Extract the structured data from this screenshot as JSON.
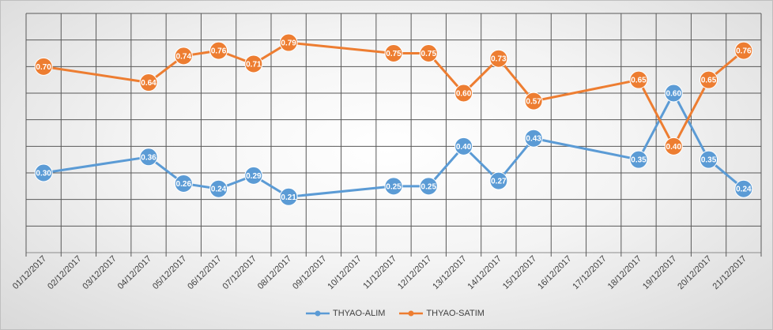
{
  "chart_data": {
    "type": "line",
    "title": "",
    "xlabel": "",
    "ylabel": "",
    "ylim": [
      0,
      0.9
    ],
    "grid": true,
    "legend_position": "bottom",
    "categories": [
      "01/12/2017",
      "02/12/2017",
      "03/12/2017",
      "04/12/2017",
      "05/12/2017",
      "06/12/2017",
      "07/12/2017",
      "08/12/2017",
      "09/12/2017",
      "10/12/2017",
      "11/12/2017",
      "12/12/2017",
      "13/12/2017",
      "14/12/2017",
      "15/12/2017",
      "16/12/2017",
      "17/12/2017",
      "18/12/2017",
      "19/12/2017",
      "20/12/2017",
      "21/12/2017"
    ],
    "series": [
      {
        "name": "THYAO-ALIM",
        "color": "#5b9bd5",
        "points": [
          {
            "x": 0.0,
            "y": 0.3,
            "label": "0.30"
          },
          {
            "x": 3.0,
            "y": 0.36,
            "label": "0.36"
          },
          {
            "x": 4.0,
            "y": 0.26,
            "label": "0.26"
          },
          {
            "x": 5.0,
            "y": 0.24,
            "label": "0.24"
          },
          {
            "x": 6.0,
            "y": 0.29,
            "label": "0.29"
          },
          {
            "x": 7.0,
            "y": 0.21,
            "label": "0.21"
          },
          {
            "x": 10.0,
            "y": 0.25,
            "label": "0.25"
          },
          {
            "x": 11.0,
            "y": 0.25,
            "label": "0.25"
          },
          {
            "x": 12.0,
            "y": 0.4,
            "label": "0.40"
          },
          {
            "x": 13.0,
            "y": 0.27,
            "label": "0.27"
          },
          {
            "x": 14.0,
            "y": 0.43,
            "label": "0.43"
          },
          {
            "x": 17.0,
            "y": 0.35,
            "label": "0.35"
          },
          {
            "x": 18.0,
            "y": 0.6,
            "label": "0.60"
          },
          {
            "x": 19.0,
            "y": 0.35,
            "label": "0.35"
          },
          {
            "x": 20.0,
            "y": 0.24,
            "label": "0.24"
          }
        ]
      },
      {
        "name": "THYAO-SATIM",
        "color": "#ed7d31",
        "points": [
          {
            "x": 0.0,
            "y": 0.7,
            "label": "0.70"
          },
          {
            "x": 3.0,
            "y": 0.64,
            "label": "0.64"
          },
          {
            "x": 4.0,
            "y": 0.74,
            "label": "0.74"
          },
          {
            "x": 5.0,
            "y": 0.76,
            "label": "0.76"
          },
          {
            "x": 6.0,
            "y": 0.71,
            "label": "0.71"
          },
          {
            "x": 7.0,
            "y": 0.79,
            "label": "0.79"
          },
          {
            "x": 10.0,
            "y": 0.75,
            "label": "0.75"
          },
          {
            "x": 11.0,
            "y": 0.75,
            "label": "0.75"
          },
          {
            "x": 12.0,
            "y": 0.6,
            "label": "0.60"
          },
          {
            "x": 13.0,
            "y": 0.73,
            "label": "0.73"
          },
          {
            "x": 14.0,
            "y": 0.57,
            "label": "0.57"
          },
          {
            "x": 17.0,
            "y": 0.65,
            "label": "0.65"
          },
          {
            "x": 18.0,
            "y": 0.4,
            "label": "0.40"
          },
          {
            "x": 19.0,
            "y": 0.65,
            "label": "0.65"
          },
          {
            "x": 20.0,
            "y": 0.76,
            "label": "0.76"
          }
        ]
      }
    ]
  }
}
